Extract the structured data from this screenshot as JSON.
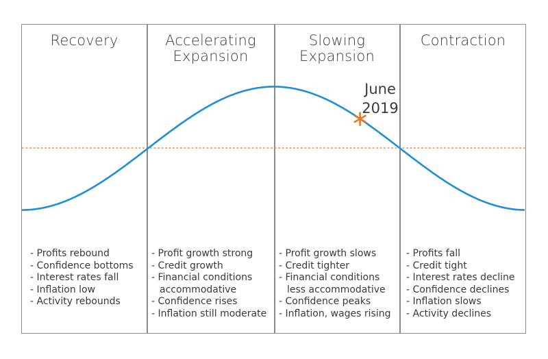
{
  "phases": [
    {
      "title": [
        "Recovery"
      ],
      "bullets": [
        [
          "- Profits rebound"
        ],
        [
          "- Confidence bottoms"
        ],
        [
          "- Interest rates fall"
        ],
        [
          "- Inflation low"
        ],
        [
          "- Activity rebounds"
        ]
      ]
    },
    {
      "title": [
        "Accelerating",
        "Expansion"
      ],
      "bullets": [
        [
          "- Profit growth strong"
        ],
        [
          "- Credit growth"
        ],
        [
          "- Financial conditions",
          "accommodative"
        ],
        [
          "- Confidence rises"
        ],
        [
          "- Inflation still moderate"
        ]
      ]
    },
    {
      "title": [
        "Slowing",
        "Expansion"
      ],
      "bullets": [
        [
          "- Profit growth slows"
        ],
        [
          "- Credit tighter"
        ],
        [
          "- Financial conditions",
          "less accommodative"
        ],
        [
          "- Confidence peaks"
        ],
        [
          "- Inflation, wages rising"
        ]
      ]
    },
    {
      "title": [
        "Contraction"
      ],
      "bullets": [
        [
          "- Profits fall"
        ],
        [
          "- Credit tight"
        ],
        [
          "- Interest rates decline"
        ],
        [
          "- Confidence declines"
        ],
        [
          "- Inflation slows"
        ],
        [
          "- Activity declines"
        ]
      ]
    }
  ],
  "marker": {
    "label_line1": "June",
    "label_line2": "2019",
    "symbol": "*",
    "phase_position": 0.67
  },
  "colors": {
    "curve": "#1e8fd6",
    "trend_line": "#e8792b",
    "marker": "#e07a2a",
    "border": "#8c8c8c",
    "text": "#3a3a3a"
  }
}
